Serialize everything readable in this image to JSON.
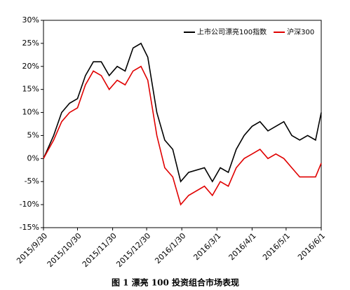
{
  "chart_data": {
    "type": "line",
    "caption": "图 1  漂亮 100 投资组合市场表现",
    "x": [
      "2015/9/30",
      "2015/10/9",
      "2015/10/16",
      "2015/10/23",
      "2015/10/30",
      "2015/11/6",
      "2015/11/13",
      "2015/11/20",
      "2015/11/27",
      "2015/12/4",
      "2015/12/11",
      "2015/12/18",
      "2015/12/25",
      "2015/12/31",
      "2016/1/8",
      "2016/1/15",
      "2016/1/22",
      "2016/1/29",
      "2016/2/5",
      "2016/2/19",
      "2016/2/26",
      "2016/3/4",
      "2016/3/11",
      "2016/3/18",
      "2016/3/25",
      "2016/4/1",
      "2016/4/8",
      "2016/4/15",
      "2016/4/22",
      "2016/4/29",
      "2016/5/6",
      "2016/5/13",
      "2016/5/20",
      "2016/5/27",
      "2016/6/1"
    ],
    "series": [
      {
        "name": "上市公司漂亮100指数",
        "color": "#000000",
        "values": [
          0,
          5,
          10,
          12,
          13,
          18,
          21,
          21,
          18,
          20,
          19,
          24,
          25,
          22,
          10,
          4,
          2,
          -5,
          -3,
          -2,
          -5,
          -2,
          -3,
          2,
          5,
          7,
          8,
          6,
          7,
          8,
          5,
          4,
          5,
          4,
          10
        ]
      },
      {
        "name": "沪深300",
        "color": "#e00000",
        "values": [
          0,
          4,
          8,
          10,
          11,
          16,
          19,
          18,
          15,
          17,
          16,
          19,
          20,
          17,
          5,
          -2,
          -4,
          -10,
          -8,
          -6,
          -8,
          -5,
          -6,
          -2,
          0,
          1,
          2,
          0,
          1,
          0,
          -2,
          -4,
          -4,
          -4,
          -1
        ]
      }
    ],
    "xlim": [
      "2015/9/30",
      "2016/6/1"
    ],
    "xticks": [
      "2015/9/30",
      "2015/10/30",
      "2015/11/30",
      "2015/12/30",
      "2016/1/30",
      "2016/3/1",
      "2016/4/1",
      "2016/5/1",
      "2016/6/1"
    ],
    "ylim": [
      -15,
      30
    ],
    "yticks": [
      {
        "value": -15,
        "label": "-15%"
      },
      {
        "value": -10,
        "label": "-10%"
      },
      {
        "value": -5,
        "label": "-5%"
      },
      {
        "value": 0,
        "label": "0%"
      },
      {
        "value": 5,
        "label": "5%"
      },
      {
        "value": 10,
        "label": "10%"
      },
      {
        "value": 15,
        "label": "15%"
      },
      {
        "value": 20,
        "label": "20%"
      },
      {
        "value": 25,
        "label": "25%"
      },
      {
        "value": 30,
        "label": "30%"
      }
    ],
    "legend": "top-right"
  }
}
